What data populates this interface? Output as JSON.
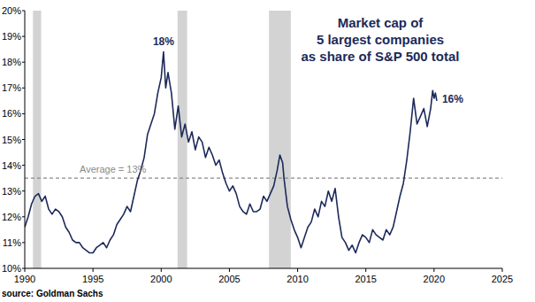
{
  "chart_data": {
    "type": "line",
    "title": "Market cap of\n5 largest companies\nas share of S&P 500 total",
    "source": "source: Goldman Sachs",
    "annotations": [
      "18%",
      "16%"
    ],
    "reference_line": 13.5,
    "reference_label": "Average = 13%",
    "recessions": [
      [
        1990.6,
        1991.2
      ],
      [
        2001.2,
        2001.9
      ],
      [
        2007.9,
        2009.5
      ]
    ],
    "xlim": [
      1990,
      2025
    ],
    "xticks": [
      1990,
      1995,
      2000,
      2005,
      2010,
      2015,
      2020,
      2025
    ],
    "ylim": [
      10,
      20
    ],
    "yticks": [
      {
        "value": 10,
        "label": "10%"
      },
      {
        "value": 11,
        "label": "11%"
      },
      {
        "value": 12,
        "label": "12%"
      },
      {
        "value": 13,
        "label": "13%"
      },
      {
        "value": 14,
        "label": "14%"
      },
      {
        "value": 15,
        "label": "15%"
      },
      {
        "value": 16,
        "label": "16%"
      },
      {
        "value": 17,
        "label": "17%"
      },
      {
        "value": 18,
        "label": "18%"
      },
      {
        "value": 19,
        "label": "19%"
      },
      {
        "value": 20,
        "label": "20%"
      }
    ],
    "grid": false,
    "color": "#1c2a5a",
    "x": [
      1990.0,
      1990.25,
      1990.5,
      1990.75,
      1991.0,
      1991.25,
      1991.5,
      1991.75,
      1992.0,
      1992.25,
      1992.5,
      1992.75,
      1993.0,
      1993.25,
      1993.5,
      1993.75,
      1994.0,
      1994.25,
      1994.5,
      1994.75,
      1995.0,
      1995.25,
      1995.5,
      1995.75,
      1996.0,
      1996.25,
      1996.5,
      1996.75,
      1997.0,
      1997.25,
      1997.5,
      1997.75,
      1998.0,
      1998.25,
      1998.5,
      1998.75,
      1999.0,
      1999.25,
      1999.5,
      1999.75,
      2000.0,
      2000.17,
      2000.33,
      2000.5,
      2000.75,
      2001.0,
      2001.25,
      2001.5,
      2001.75,
      2002.0,
      2002.25,
      2002.5,
      2002.75,
      2003.0,
      2003.25,
      2003.5,
      2003.75,
      2004.0,
      2004.25,
      2004.5,
      2004.75,
      2005.0,
      2005.25,
      2005.5,
      2005.75,
      2006.0,
      2006.25,
      2006.5,
      2006.75,
      2007.0,
      2007.25,
      2007.5,
      2007.75,
      2008.0,
      2008.25,
      2008.5,
      2008.7,
      2008.9,
      2009.0,
      2009.25,
      2009.5,
      2009.75,
      2010.0,
      2010.25,
      2010.5,
      2010.75,
      2011.0,
      2011.25,
      2011.5,
      2011.75,
      2012.0,
      2012.25,
      2012.5,
      2012.75,
      2013.0,
      2013.25,
      2013.5,
      2013.75,
      2014.0,
      2014.25,
      2014.5,
      2014.75,
      2015.0,
      2015.25,
      2015.5,
      2015.75,
      2016.0,
      2016.25,
      2016.5,
      2016.75,
      2017.0,
      2017.25,
      2017.5,
      2017.75,
      2018.0,
      2018.25,
      2018.5,
      2018.75,
      2019.0,
      2019.25,
      2019.5,
      2019.75,
      2019.9,
      2020.0,
      2020.1,
      2020.2
    ],
    "values": [
      11.6,
      12.0,
      12.5,
      12.8,
      12.9,
      12.6,
      12.8,
      12.3,
      12.1,
      12.3,
      12.2,
      12.0,
      11.6,
      11.4,
      11.1,
      11.0,
      11.0,
      10.8,
      10.7,
      10.6,
      10.6,
      10.8,
      10.9,
      11.0,
      10.8,
      11.1,
      11.3,
      11.7,
      11.9,
      12.1,
      12.4,
      12.2,
      12.8,
      13.4,
      13.8,
      14.3,
      15.2,
      15.6,
      16.0,
      16.8,
      17.4,
      18.4,
      17.0,
      17.6,
      16.8,
      15.4,
      16.3,
      15.1,
      15.6,
      14.9,
      15.3,
      14.6,
      15.1,
      14.9,
      14.3,
      14.7,
      14.4,
      14.0,
      14.2,
      13.7,
      13.3,
      13.0,
      13.2,
      12.9,
      12.4,
      12.2,
      12.1,
      12.5,
      12.2,
      12.2,
      12.3,
      12.8,
      12.6,
      12.9,
      13.2,
      13.8,
      14.4,
      14.1,
      13.5,
      12.4,
      11.9,
      11.5,
      11.2,
      10.8,
      11.2,
      11.6,
      11.8,
      12.3,
      12.0,
      12.6,
      12.4,
      13.0,
      12.6,
      13.1,
      12.0,
      11.2,
      11.0,
      10.7,
      10.9,
      10.6,
      11.0,
      11.3,
      11.2,
      11.0,
      11.5,
      11.3,
      11.2,
      11.1,
      11.5,
      11.3,
      11.6,
      12.2,
      12.8,
      13.3,
      14.2,
      15.3,
      16.6,
      15.6,
      15.9,
      16.2,
      15.5,
      16.2,
      16.9,
      16.6,
      16.8,
      16.5
    ]
  }
}
